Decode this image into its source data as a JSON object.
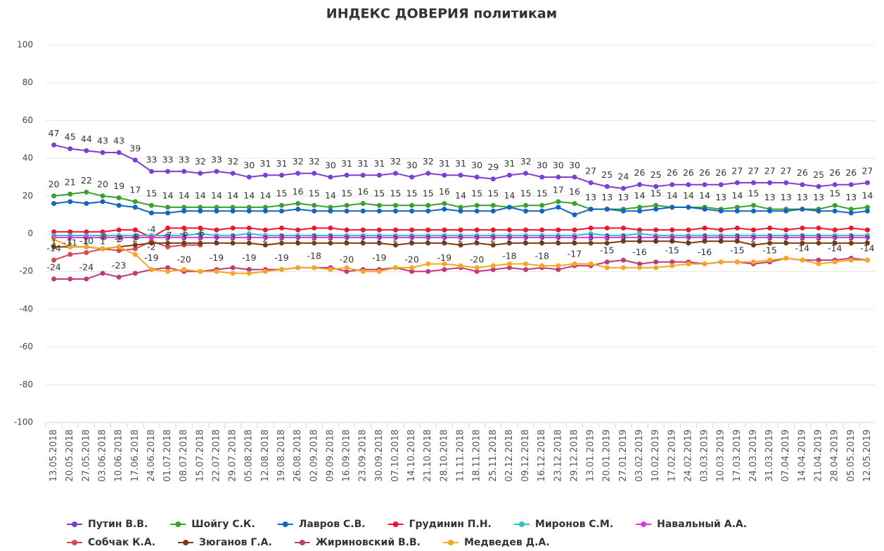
{
  "chart_data": {
    "type": "line",
    "title": "ИНДЕКС ДОВЕРИЯ политикам",
    "categories": [
      "13.05.2018",
      "20.05.2018",
      "27.05.2018",
      "03.06.2018",
      "10.06.2018",
      "17.06.2018",
      "24.06.2018",
      "01.07.2018",
      "08.07.2018",
      "15.07.2018",
      "22.07.2018",
      "29.07.2018",
      "05.08.2018",
      "12.08.2018",
      "19.08.2018",
      "26.08.2018",
      "02.09.2018",
      "09.09.2018",
      "16.09.2018",
      "23.09.2018",
      "30.09.2018",
      "07.10.2018",
      "14.10.2018",
      "21.10.2018",
      "28.10.2018",
      "11.11.2018",
      "18.11.2018",
      "25.11.2018",
      "02.12.2018",
      "09.12.2018",
      "16.12.2018",
      "23.12.2018",
      "29.12.2018",
      "13.01.2019",
      "20.01.2019",
      "27.01.2019",
      "03.02.2019",
      "10.02.2019",
      "17.02.2019",
      "24.02.2019",
      "03.03.2019",
      "10.03.2019",
      "17.03.2019",
      "24.03.2019",
      "31.03.2019",
      "07.04.2019",
      "14.04.2019",
      "21.04.2019",
      "28.04.2019",
      "05.05.2019",
      "12.05.2019"
    ],
    "ylim": [
      -100,
      100
    ],
    "yticks": [
      -100,
      -80,
      -60,
      -40,
      -20,
      0,
      20,
      40,
      60,
      80,
      100
    ],
    "grid": true,
    "legend": "bottom",
    "series": [
      {
        "name": "Путин В.В.",
        "color": "#7b3fd6",
        "data_labels": true,
        "label_position": "above",
        "values": [
          47,
          45,
          44,
          43,
          43,
          39,
          33,
          33,
          33,
          32,
          33,
          32,
          30,
          31,
          31,
          32,
          32,
          30,
          31,
          31,
          31,
          32,
          30,
          32,
          31,
          31,
          30,
          29,
          31,
          32,
          30,
          30,
          30,
          27,
          25,
          24,
          26,
          25,
          26,
          26,
          26,
          26,
          27,
          27,
          27,
          27,
          26,
          25,
          26,
          26,
          27
        ]
      },
      {
        "name": "Шойгу С.К.",
        "color": "#3aa12c",
        "data_labels": true,
        "label_position": "above",
        "values": [
          20,
          21,
          22,
          20,
          19,
          17,
          15,
          14,
          14,
          14,
          14,
          14,
          14,
          14,
          15,
          16,
          15,
          14,
          15,
          16,
          15,
          15,
          15,
          15,
          16,
          14,
          15,
          15,
          14,
          15,
          15,
          17,
          16,
          13,
          13,
          13,
          14,
          15,
          14,
          14,
          14,
          13,
          14,
          15,
          13,
          13,
          13,
          13,
          15,
          13,
          14
        ]
      },
      {
        "name": "Лавров С.В.",
        "color": "#1565c0",
        "values": [
          16,
          17,
          16,
          17,
          15,
          14,
          11,
          11,
          12,
          12,
          12,
          12,
          12,
          12,
          12,
          13,
          12,
          12,
          12,
          12,
          12,
          12,
          12,
          12,
          13,
          12,
          12,
          12,
          14,
          12,
          12,
          14,
          10,
          13,
          13,
          12,
          12,
          13,
          14,
          14,
          13,
          12,
          12,
          12,
          12,
          12,
          13,
          12,
          12,
          11,
          12
        ]
      },
      {
        "name": "Грудинин П.Н.",
        "color": "#f0143c",
        "data_labels": true,
        "label_position": "below",
        "values": [
          1,
          1,
          1,
          1,
          2,
          2,
          -2,
          3,
          3,
          3,
          2,
          3,
          3,
          2,
          3,
          2,
          3,
          3,
          2,
          2,
          2,
          2,
          2,
          2,
          2,
          2,
          2,
          2,
          2,
          2,
          2,
          2,
          2,
          3,
          3,
          3,
          2,
          2,
          2,
          2,
          3,
          2,
          3,
          2,
          3,
          2,
          3,
          3,
          2,
          3,
          2
        ]
      },
      {
        "name": "Миронов С.М.",
        "color": "#29c4c4",
        "values": [
          -1,
          -1,
          -1,
          -1,
          -1,
          -1,
          -1,
          -1,
          -1,
          0,
          -1,
          -1,
          0,
          -1,
          -1,
          -1,
          -1,
          -1,
          -1,
          -1,
          -1,
          -1,
          -1,
          -1,
          -1,
          -1,
          -1,
          -1,
          -1,
          -1,
          -1,
          -1,
          -1,
          0,
          -1,
          -1,
          0,
          -1,
          -1,
          -1,
          -1,
          -1,
          -1,
          -1,
          -1,
          -1,
          -1,
          -1,
          -1,
          -1,
          -1
        ]
      },
      {
        "name": "Навальный А.А.",
        "color": "#d63be0",
        "values": [
          -2,
          -2,
          -2,
          -2,
          -2,
          -2,
          -2,
          -2,
          -2,
          -2,
          -2,
          -2,
          -2,
          -2,
          -2,
          -2,
          -2,
          -2,
          -2,
          -2,
          -2,
          -2,
          -2,
          -2,
          -2,
          -2,
          -2,
          -2,
          -2,
          -2,
          -2,
          -2,
          -2,
          -2,
          -2,
          -2,
          -2,
          -2,
          -2,
          -2,
          -2,
          -2,
          -2,
          -2,
          -2,
          -2,
          -2,
          -2,
          -2,
          -2,
          -2
        ]
      },
      {
        "name": "Собчак К.А.",
        "color": "#d9465a",
        "data_labels": true,
        "label_position": "above",
        "values": [
          -14,
          -11,
          -10,
          -8,
          -9,
          -8,
          -4,
          -7,
          -6,
          -6,
          null,
          null,
          null,
          null,
          null,
          null,
          null,
          null,
          null,
          null,
          null,
          null,
          null,
          null,
          null,
          null,
          null,
          null,
          null,
          null,
          null,
          null,
          null,
          null,
          null,
          null,
          null,
          null,
          null,
          null,
          null,
          null,
          null,
          null,
          null,
          null,
          null,
          null,
          null,
          null,
          null
        ]
      },
      {
        "name": "Зюганов Г.А.",
        "color": "#7a3b12",
        "values": [
          -7,
          -7,
          -7,
          -8,
          -7,
          -6,
          -5,
          -5,
          -5,
          -5,
          -5,
          -5,
          -5,
          -6,
          -5,
          -5,
          -5,
          -5,
          -5,
          -5,
          -5,
          -6,
          -5,
          -5,
          -5,
          -6,
          -5,
          -6,
          -5,
          -5,
          -5,
          -5,
          -5,
          -5,
          -5,
          -4,
          -4,
          -4,
          -4,
          -5,
          -4,
          -4,
          -4,
          -6,
          -5,
          -5,
          -5,
          -5,
          -5,
          -5,
          -5
        ]
      },
      {
        "name": "Жириновский В.В.",
        "color": "#c0397a",
        "data_labels": true,
        "label_position": "above",
        "label_step": 2,
        "values": [
          -24,
          -24,
          -24,
          -21,
          -23,
          -21,
          -19,
          -18,
          -20,
          -20,
          -19,
          -18,
          -19,
          -19,
          -19,
          -18,
          -18,
          -18,
          -20,
          -19,
          -19,
          -18,
          -20,
          -20,
          -19,
          -18,
          -20,
          -19,
          -18,
          -19,
          -18,
          -19,
          -17,
          -17,
          -15,
          -14,
          -16,
          -15,
          -15,
          -15,
          -16,
          -15,
          -15,
          -16,
          -15,
          -13,
          -14,
          -14,
          -14,
          -13,
          -14
        ]
      },
      {
        "name": "Медведев Д.А.",
        "color": "#f5a623",
        "values": [
          -3,
          -7,
          -7,
          -8,
          -7,
          -11,
          -19,
          -20,
          -19,
          -20,
          -20,
          -21,
          -21,
          -20,
          -19,
          -18,
          -18,
          -19,
          -18,
          -20,
          -20,
          -18,
          -18,
          -16,
          -16,
          -17,
          -18,
          -17,
          -16,
          -16,
          -17,
          -17,
          -16,
          -16,
          -18,
          -18,
          -18,
          -18,
          -17,
          -16,
          -16,
          -15,
          -15,
          -15,
          -14,
          -13,
          -14,
          -16,
          -15,
          -14,
          -14
        ]
      }
    ]
  }
}
